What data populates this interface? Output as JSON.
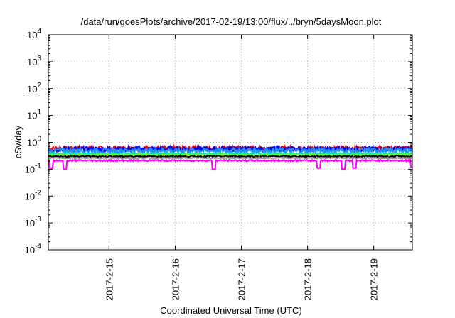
{
  "chart_data": {
    "type": "line",
    "title": "/data/run/goesPlots/archive/2017-02-19/13:00/flux/../bryn/5daysMoon.plot",
    "xlabel": "Coordinated Universal Time (UTC)",
    "ylabel": "cSv/day",
    "yscale": "log",
    "ylim": [
      0.0001,
      10000
    ],
    "xlim": [
      "2017-02-14T02:00",
      "2017-02-19T14:00"
    ],
    "grid": true,
    "y_ticks": [
      {
        "base": "10",
        "exp": "-4",
        "value": 0.0001
      },
      {
        "base": "10",
        "exp": "-3",
        "value": 0.001
      },
      {
        "base": "10",
        "exp": "-2",
        "value": 0.01
      },
      {
        "base": "10",
        "exp": "-1",
        "value": 0.1
      },
      {
        "base": "10",
        "exp": "0",
        "value": 1
      },
      {
        "base": "10",
        "exp": "1",
        "value": 10
      },
      {
        "base": "10",
        "exp": "2",
        "value": 100
      },
      {
        "base": "10",
        "exp": "3",
        "value": 1000
      },
      {
        "base": "10",
        "exp": "4",
        "value": 10000
      }
    ],
    "x_ticks": [
      {
        "label": "2017-2-15",
        "value": "2017-02-15T00:00"
      },
      {
        "label": "2017-2-16",
        "value": "2017-02-16T00:00"
      },
      {
        "label": "2017-2-17",
        "value": "2017-02-17T00:00"
      },
      {
        "label": "2017-2-18",
        "value": "2017-02-18T00:00"
      },
      {
        "label": "2017-2-19",
        "value": "2017-02-19T00:00"
      }
    ],
    "series": [
      {
        "color": "#ff0000",
        "level": 0.6,
        "jitter": 0.13,
        "dips": []
      },
      {
        "color": "#0000ff",
        "level": 0.57,
        "jitter": 0.13,
        "dips": []
      },
      {
        "color": "#1e90ff",
        "level": 0.5,
        "jitter": 0.12,
        "dips": []
      },
      {
        "color": "#00e5b0",
        "level": 0.38,
        "jitter": 0.05,
        "dips": []
      },
      {
        "color": "#7cfc00",
        "level": 0.34,
        "jitter": 0.04,
        "dips": []
      },
      {
        "color": "#000000",
        "level": 0.3,
        "jitter": 0.04,
        "dips": []
      },
      {
        "color": "#999999",
        "level": 0.26,
        "jitter": 0.03,
        "dips": []
      },
      {
        "color": "#ff00ff",
        "level": 0.21,
        "jitter": 0.04,
        "dips": [
          {
            "t": "2017-02-14T03:00",
            "v": 0.11
          },
          {
            "t": "2017-02-14T08:00",
            "v": 0.1
          },
          {
            "t": "2017-02-16T14:00",
            "v": 0.1
          },
          {
            "t": "2017-02-18T04:00",
            "v": 0.11
          },
          {
            "t": "2017-02-18T13:00",
            "v": 0.1
          },
          {
            "t": "2017-02-18T17:00",
            "v": 0.11
          },
          {
            "t": "2017-02-19T14:00",
            "v": 0.12
          }
        ]
      }
    ]
  }
}
